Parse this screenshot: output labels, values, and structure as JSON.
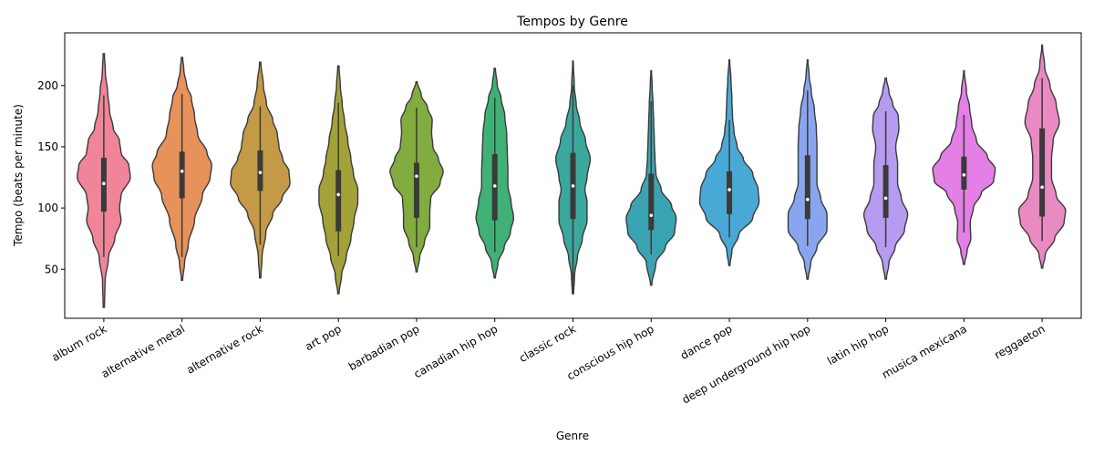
{
  "chart_data": {
    "type": "violin",
    "title": "Tempos by Genre",
    "xlabel": "Genre",
    "ylabel": "Tempo (beats per minute)",
    "ylim": [
      10,
      243
    ],
    "yticks": [
      50,
      100,
      150,
      200
    ],
    "grid": false,
    "categories": [
      "album rock",
      "alternative metal",
      "alternative rock",
      "art pop",
      "barbadian pop",
      "canadian hip hop",
      "classic rock",
      "conscious hip hop",
      "dance pop",
      "deep underground hip hop",
      "latin hip hop",
      "musica mexicana",
      "reggaeton"
    ],
    "colors": [
      "#f0859a",
      "#e6925a",
      "#c49a47",
      "#a3a239",
      "#82ac3f",
      "#3fb176",
      "#3ba89e",
      "#3ba4b2",
      "#49a9d6",
      "#8aa5f0",
      "#b79bf0",
      "#e47fe6",
      "#e98ac3"
    ],
    "series": [
      {
        "name": "album rock",
        "min": 19,
        "q1": 97,
        "median": 120,
        "q3": 141,
        "max": 226,
        "whisker_low": 60,
        "whisker_high": 192,
        "density": [
          [
            19,
            0.02
          ],
          [
            40,
            0.04
          ],
          [
            60,
            0.15
          ],
          [
            75,
            0.35
          ],
          [
            90,
            0.55
          ],
          [
            100,
            0.5
          ],
          [
            110,
            0.55
          ],
          [
            125,
            0.85
          ],
          [
            135,
            0.8
          ],
          [
            145,
            0.55
          ],
          [
            155,
            0.5
          ],
          [
            165,
            0.3
          ],
          [
            180,
            0.18
          ],
          [
            195,
            0.12
          ],
          [
            210,
            0.05
          ],
          [
            226,
            0.02
          ]
        ]
      },
      {
        "name": "alternative metal",
        "min": 41,
        "q1": 108,
        "median": 130,
        "q3": 146,
        "max": 223,
        "whisker_low": 60,
        "whisker_high": 193,
        "density": [
          [
            41,
            0.02
          ],
          [
            55,
            0.08
          ],
          [
            70,
            0.2
          ],
          [
            90,
            0.4
          ],
          [
            110,
            0.65
          ],
          [
            125,
            0.9
          ],
          [
            135,
            0.95
          ],
          [
            145,
            0.8
          ],
          [
            160,
            0.5
          ],
          [
            175,
            0.4
          ],
          [
            190,
            0.3
          ],
          [
            200,
            0.15
          ],
          [
            212,
            0.06
          ],
          [
            223,
            0.02
          ]
        ]
      },
      {
        "name": "alternative rock",
        "min": 43,
        "q1": 114,
        "median": 129,
        "q3": 147,
        "max": 219,
        "whisker_low": 70,
        "whisker_high": 183,
        "density": [
          [
            43,
            0.02
          ],
          [
            60,
            0.06
          ],
          [
            80,
            0.18
          ],
          [
            95,
            0.4
          ],
          [
            108,
            0.7
          ],
          [
            120,
            0.95
          ],
          [
            130,
            0.92
          ],
          [
            140,
            0.72
          ],
          [
            150,
            0.6
          ],
          [
            160,
            0.55
          ],
          [
            172,
            0.4
          ],
          [
            185,
            0.2
          ],
          [
            200,
            0.1
          ],
          [
            219,
            0.02
          ]
        ]
      },
      {
        "name": "art pop",
        "min": 30,
        "q1": 81,
        "median": 111,
        "q3": 131,
        "max": 216,
        "whisker_low": 61,
        "whisker_high": 186,
        "density": [
          [
            30,
            0.02
          ],
          [
            45,
            0.1
          ],
          [
            60,
            0.25
          ],
          [
            75,
            0.4
          ],
          [
            90,
            0.5
          ],
          [
            105,
            0.62
          ],
          [
            115,
            0.62
          ],
          [
            128,
            0.48
          ],
          [
            140,
            0.4
          ],
          [
            155,
            0.3
          ],
          [
            170,
            0.2
          ],
          [
            185,
            0.12
          ],
          [
            200,
            0.06
          ],
          [
            216,
            0.02
          ]
        ]
      },
      {
        "name": "barbadian pop",
        "min": 48,
        "q1": 92,
        "median": 126,
        "q3": 137,
        "max": 203,
        "whisker_low": 68,
        "whisker_high": 182,
        "density": [
          [
            48,
            0.02
          ],
          [
            60,
            0.1
          ],
          [
            72,
            0.25
          ],
          [
            85,
            0.42
          ],
          [
            95,
            0.42
          ],
          [
            108,
            0.45
          ],
          [
            120,
            0.75
          ],
          [
            130,
            0.85
          ],
          [
            140,
            0.7
          ],
          [
            150,
            0.52
          ],
          [
            162,
            0.48
          ],
          [
            172,
            0.5
          ],
          [
            182,
            0.35
          ],
          [
            192,
            0.15
          ],
          [
            203,
            0.02
          ]
        ]
      },
      {
        "name": "canadian hip hop",
        "min": 43,
        "q1": 90,
        "median": 118,
        "q3": 144,
        "max": 214,
        "whisker_low": 64,
        "whisker_high": 190,
        "density": [
          [
            43,
            0.02
          ],
          [
            55,
            0.1
          ],
          [
            68,
            0.3
          ],
          [
            80,
            0.5
          ],
          [
            92,
            0.6
          ],
          [
            105,
            0.52
          ],
          [
            118,
            0.42
          ],
          [
            130,
            0.42
          ],
          [
            145,
            0.4
          ],
          [
            160,
            0.38
          ],
          [
            175,
            0.32
          ],
          [
            190,
            0.2
          ],
          [
            200,
            0.08
          ],
          [
            214,
            0.02
          ]
        ]
      },
      {
        "name": "classic rock",
        "min": 30,
        "q1": 91,
        "median": 118,
        "q3": 145,
        "max": 220,
        "whisker_low": 30,
        "whisker_high": 200,
        "density": [
          [
            30,
            0.02
          ],
          [
            45,
            0.05
          ],
          [
            60,
            0.14
          ],
          [
            75,
            0.3
          ],
          [
            90,
            0.45
          ],
          [
            105,
            0.45
          ],
          [
            115,
            0.38
          ],
          [
            125,
            0.45
          ],
          [
            140,
            0.55
          ],
          [
            155,
            0.4
          ],
          [
            170,
            0.22
          ],
          [
            185,
            0.1
          ],
          [
            200,
            0.04
          ],
          [
            220,
            0.01
          ]
        ]
      },
      {
        "name": "conscious hip hop",
        "min": 37,
        "q1": 82,
        "median": 94,
        "q3": 128,
        "max": 212,
        "whisker_low": 62,
        "whisker_high": 187,
        "density": [
          [
            37,
            0.02
          ],
          [
            55,
            0.15
          ],
          [
            68,
            0.45
          ],
          [
            80,
            0.75
          ],
          [
            92,
            0.8
          ],
          [
            102,
            0.65
          ],
          [
            115,
            0.32
          ],
          [
            128,
            0.15
          ],
          [
            140,
            0.12
          ],
          [
            155,
            0.1
          ],
          [
            170,
            0.08
          ],
          [
            185,
            0.06
          ],
          [
            200,
            0.03
          ],
          [
            212,
            0.01
          ]
        ]
      },
      {
        "name": "dance pop",
        "min": 53,
        "q1": 95,
        "median": 115,
        "q3": 130,
        "max": 221,
        "whisker_low": 76,
        "whisker_high": 172,
        "density": [
          [
            53,
            0.02
          ],
          [
            65,
            0.08
          ],
          [
            78,
            0.3
          ],
          [
            92,
            0.75
          ],
          [
            105,
            0.95
          ],
          [
            115,
            0.92
          ],
          [
            128,
            0.75
          ],
          [
            140,
            0.45
          ],
          [
            150,
            0.25
          ],
          [
            162,
            0.15
          ],
          [
            175,
            0.1
          ],
          [
            190,
            0.08
          ],
          [
            205,
            0.05
          ],
          [
            221,
            0.01
          ]
        ]
      },
      {
        "name": "deep underground hip hop",
        "min": 42,
        "q1": 91,
        "median": 107,
        "q3": 143,
        "max": 221,
        "whisker_low": 69,
        "whisker_high": 196,
        "density": [
          [
            42,
            0.02
          ],
          [
            55,
            0.1
          ],
          [
            68,
            0.3
          ],
          [
            82,
            0.62
          ],
          [
            95,
            0.62
          ],
          [
            108,
            0.42
          ],
          [
            120,
            0.3
          ],
          [
            135,
            0.3
          ],
          [
            150,
            0.3
          ],
          [
            165,
            0.28
          ],
          [
            180,
            0.22
          ],
          [
            195,
            0.12
          ],
          [
            208,
            0.05
          ],
          [
            221,
            0.01
          ]
        ]
      },
      {
        "name": "latin hip hop",
        "min": 42,
        "q1": 92,
        "median": 108,
        "q3": 135,
        "max": 206,
        "whisker_low": 68,
        "whisker_high": 179,
        "density": [
          [
            42,
            0.02
          ],
          [
            55,
            0.1
          ],
          [
            68,
            0.3
          ],
          [
            82,
            0.6
          ],
          [
            95,
            0.7
          ],
          [
            108,
            0.5
          ],
          [
            120,
            0.38
          ],
          [
            135,
            0.38
          ],
          [
            150,
            0.32
          ],
          [
            165,
            0.42
          ],
          [
            175,
            0.4
          ],
          [
            185,
            0.22
          ],
          [
            195,
            0.1
          ],
          [
            206,
            0.02
          ]
        ]
      },
      {
        "name": "musica mexicana",
        "min": 54,
        "q1": 115,
        "median": 127,
        "q3": 142,
        "max": 212,
        "whisker_low": 80,
        "whisker_high": 176,
        "density": [
          [
            54,
            0.02
          ],
          [
            65,
            0.1
          ],
          [
            75,
            0.22
          ],
          [
            88,
            0.2
          ],
          [
            100,
            0.3
          ],
          [
            112,
            0.55
          ],
          [
            122,
            0.95
          ],
          [
            132,
            1.0
          ],
          [
            142,
            0.75
          ],
          [
            155,
            0.4
          ],
          [
            168,
            0.25
          ],
          [
            182,
            0.18
          ],
          [
            195,
            0.08
          ],
          [
            212,
            0.01
          ]
        ]
      },
      {
        "name": "reggaeton",
        "min": 51,
        "q1": 93,
        "median": 117,
        "q3": 165,
        "max": 233,
        "whisker_low": 73,
        "whisker_high": 206,
        "density": [
          [
            51,
            0.02
          ],
          [
            62,
            0.1
          ],
          [
            75,
            0.4
          ],
          [
            88,
            0.7
          ],
          [
            98,
            0.75
          ],
          [
            110,
            0.45
          ],
          [
            125,
            0.3
          ],
          [
            140,
            0.3
          ],
          [
            155,
            0.35
          ],
          [
            170,
            0.55
          ],
          [
            185,
            0.45
          ],
          [
            200,
            0.25
          ],
          [
            215,
            0.08
          ],
          [
            233,
            0.01
          ]
        ]
      }
    ]
  }
}
